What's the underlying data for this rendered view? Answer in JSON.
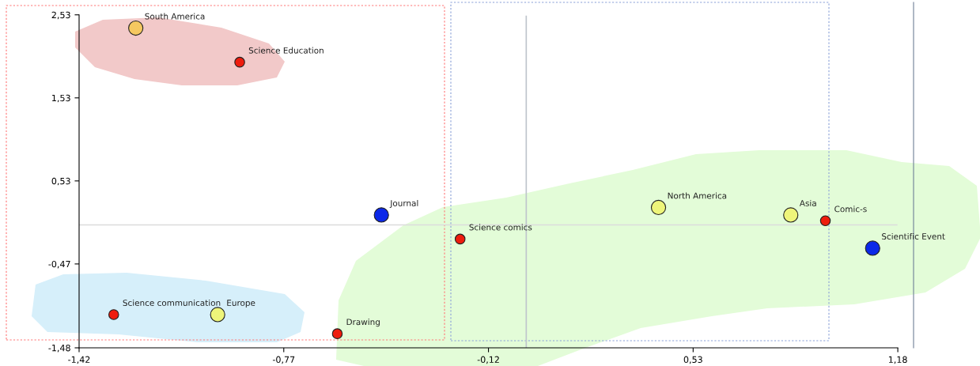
{
  "chart_data": {
    "type": "scatter",
    "xlim": [
      -1.42,
      1.23
    ],
    "ylim": [
      -1.48,
      2.68
    ],
    "xticks": [
      {
        "value": -1.42,
        "label": "-1,42"
      },
      {
        "value": -0.77,
        "label": "-0,77"
      },
      {
        "value": -0.12,
        "label": "-0,12"
      },
      {
        "value": 0.53,
        "label": "0,53"
      },
      {
        "value": 1.18,
        "label": "1,18"
      }
    ],
    "yticks": [
      {
        "value": -1.48,
        "label": "-1,48"
      },
      {
        "value": -0.47,
        "label": "-0,47"
      },
      {
        "value": 0.53,
        "label": "0,53"
      },
      {
        "value": 1.53,
        "label": "1,53"
      },
      {
        "value": 2.53,
        "label": "2,53"
      }
    ],
    "marker": "circle",
    "grid": false,
    "series": [
      {
        "color": "#ee1c0e",
        "x": [
          -0.91,
          -0.21,
          0.95,
          -1.31,
          -0.6
        ],
        "values": [
          1.96,
          -0.17,
          0.05,
          -1.08,
          -1.31
        ]
      },
      {
        "color": "#eef57a",
        "x": [
          -0.98,
          0.42,
          0.84
        ],
        "values": [
          -1.08,
          0.21,
          0.12
        ]
      },
      {
        "color": "#f5c860",
        "x": [
          -1.24
        ],
        "values": [
          2.37
        ]
      },
      {
        "color": "#0b28e8",
        "x": [
          -0.46,
          1.1
        ],
        "values": [
          0.12,
          -0.28
        ]
      }
    ],
    "ref_lines": [
      {
        "axis": "y",
        "value": 0,
        "color": "#dcdcdc"
      },
      {
        "axis": "x",
        "value": 0,
        "color": "#bfc5cc"
      }
    ],
    "annotations": [
      {
        "text": "South America",
        "x": -1.24,
        "y": 2.37
      },
      {
        "text": "Science Education",
        "x": -0.91,
        "y": 1.96
      },
      {
        "text": "Journal",
        "x": -0.46,
        "y": 0.12
      },
      {
        "text": "Science comics",
        "x": -0.21,
        "y": -0.17
      },
      {
        "text": "North America",
        "x": 0.42,
        "y": 0.21
      },
      {
        "text": "Asia",
        "x": 0.84,
        "y": 0.12
      },
      {
        "text": "Comic-s",
        "x": 0.95,
        "y": 0.05
      },
      {
        "text": "Scientific Event",
        "x": 1.1,
        "y": -0.28
      },
      {
        "text": "Science communication",
        "x": -1.31,
        "y": -1.08
      },
      {
        "text": "Europe",
        "x": -0.98,
        "y": -1.08
      },
      {
        "text": "Drawing",
        "x": -0.6,
        "y": -1.31
      }
    ]
  }
}
